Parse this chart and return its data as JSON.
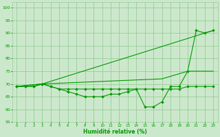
{
  "xlabel": "Humidité relative (%)",
  "background_color": "#cce8cc",
  "grid_color": "#99cc99",
  "line_color": "#009900",
  "xlim": [
    -0.5,
    23.5
  ],
  "ylim": [
    55,
    102
  ],
  "yticks": [
    55,
    60,
    65,
    70,
    75,
    80,
    85,
    90,
    95,
    100
  ],
  "xticks": [
    0,
    1,
    2,
    3,
    4,
    5,
    6,
    7,
    8,
    9,
    10,
    11,
    12,
    13,
    14,
    15,
    16,
    17,
    18,
    19,
    20,
    21,
    22,
    23
  ],
  "lines": [
    {
      "x": [
        0,
        1,
        2,
        3,
        4,
        5,
        6,
        7,
        8,
        9,
        10,
        11,
        12,
        13,
        14,
        15,
        16,
        17,
        18,
        19,
        20,
        21,
        22,
        23
      ],
      "y": [
        69,
        69,
        69,
        70,
        69,
        68,
        67,
        66,
        65,
        65,
        65,
        66,
        66,
        67,
        68,
        61,
        61,
        63,
        69,
        69,
        75,
        91,
        90,
        91
      ],
      "marker": "D",
      "markersize": 2.0
    },
    {
      "x": [
        0,
        1,
        2,
        3,
        4,
        5,
        6,
        7,
        8,
        9,
        10,
        11,
        12,
        13,
        14,
        15,
        16,
        17,
        18,
        19,
        20,
        21,
        22,
        23
      ],
      "y": [
        69,
        69,
        69,
        70,
        69,
        68,
        68,
        68,
        68,
        68,
        68,
        68,
        68,
        68,
        68,
        68,
        68,
        68,
        68,
        68,
        69,
        69,
        69,
        69
      ],
      "marker": "D",
      "markersize": 2.0
    },
    {
      "x": [
        0,
        3,
        23
      ],
      "y": [
        69,
        70,
        91
      ],
      "marker": null,
      "markersize": 0
    },
    {
      "x": [
        0,
        3,
        17,
        20,
        23
      ],
      "y": [
        69,
        70,
        72,
        75,
        75
      ],
      "marker": null,
      "markersize": 0
    }
  ]
}
